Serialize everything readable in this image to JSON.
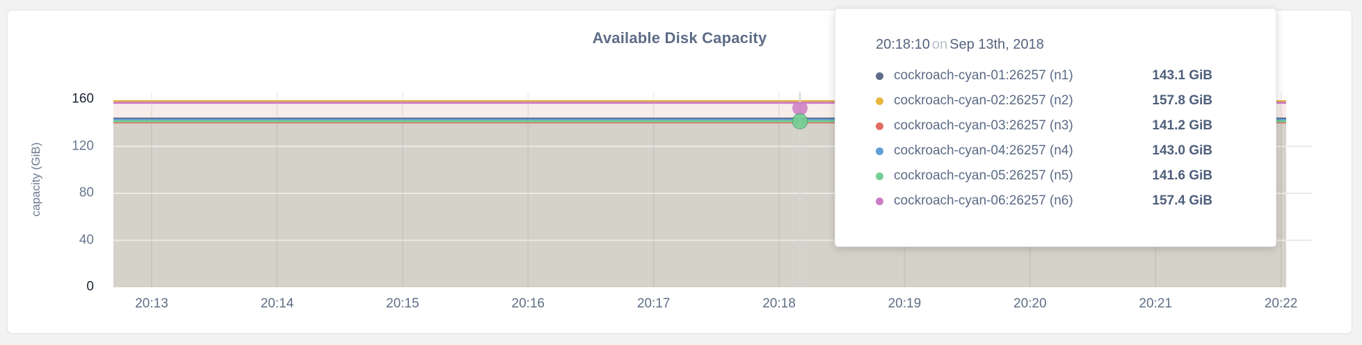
{
  "page": {
    "background": "#f2f2f3"
  },
  "card": {
    "title": "Available Disk Capacity"
  },
  "chart_data": {
    "type": "area",
    "title": "Available Disk Capacity",
    "xlabel": "",
    "ylabel": "capacity (GiB)",
    "ylim": [
      0,
      160
    ],
    "grid": true,
    "legend_position": "tooltip",
    "y_ticks": [
      {
        "label": "0",
        "value": 0,
        "strong": true
      },
      {
        "label": "40",
        "value": 40,
        "strong": false
      },
      {
        "label": "80",
        "value": 80,
        "strong": false
      },
      {
        "label": "120",
        "value": 120,
        "strong": false
      },
      {
        "label": "160",
        "value": 160,
        "strong": true
      }
    ],
    "x_ticks": [
      "20:13",
      "20:14",
      "20:15",
      "20:16",
      "20:17",
      "20:18",
      "20:19",
      "20:20",
      "20:21",
      "20:22"
    ],
    "series": [
      {
        "name": "cockroach-cyan-01:26257 (n1)",
        "color": "#5f6c87",
        "value_gib": 143.1
      },
      {
        "name": "cockroach-cyan-02:26257 (n2)",
        "color": "#e8b63e",
        "value_gib": 157.8
      },
      {
        "name": "cockroach-cyan-03:26257 (n3)",
        "color": "#e26d63",
        "value_gib": 141.2
      },
      {
        "name": "cockroach-cyan-04:26257 (n4)",
        "color": "#5f9fd6",
        "value_gib": 143.0
      },
      {
        "name": "cockroach-cyan-05:26257 (n5)",
        "color": "#74ce92",
        "value_gib": 141.6
      },
      {
        "name": "cockroach-cyan-06:26257 (n6)",
        "color": "#cc7cc4",
        "value_gib": 157.4
      }
    ],
    "series_shape": "flat constant lines across the full 20:13-20:22 window",
    "hover": {
      "time": "20:18:10"
    }
  },
  "tooltip": {
    "time": "20:18:10",
    "on": "on",
    "date": "Sep 13th, 2018",
    "rows": [
      {
        "name": "cockroach-cyan-01:26257 (n1)",
        "value": "143.1 GiB"
      },
      {
        "name": "cockroach-cyan-02:26257 (n2)",
        "value": "157.8 GiB"
      },
      {
        "name": "cockroach-cyan-03:26257 (n3)",
        "value": "141.2 GiB"
      },
      {
        "name": "cockroach-cyan-04:26257 (n4)",
        "value": "143.0 GiB"
      },
      {
        "name": "cockroach-cyan-05:26257 (n5)",
        "value": "141.6 GiB"
      },
      {
        "name": "cockroach-cyan-06:26257 (n6)",
        "value": "157.4 GiB"
      }
    ]
  }
}
